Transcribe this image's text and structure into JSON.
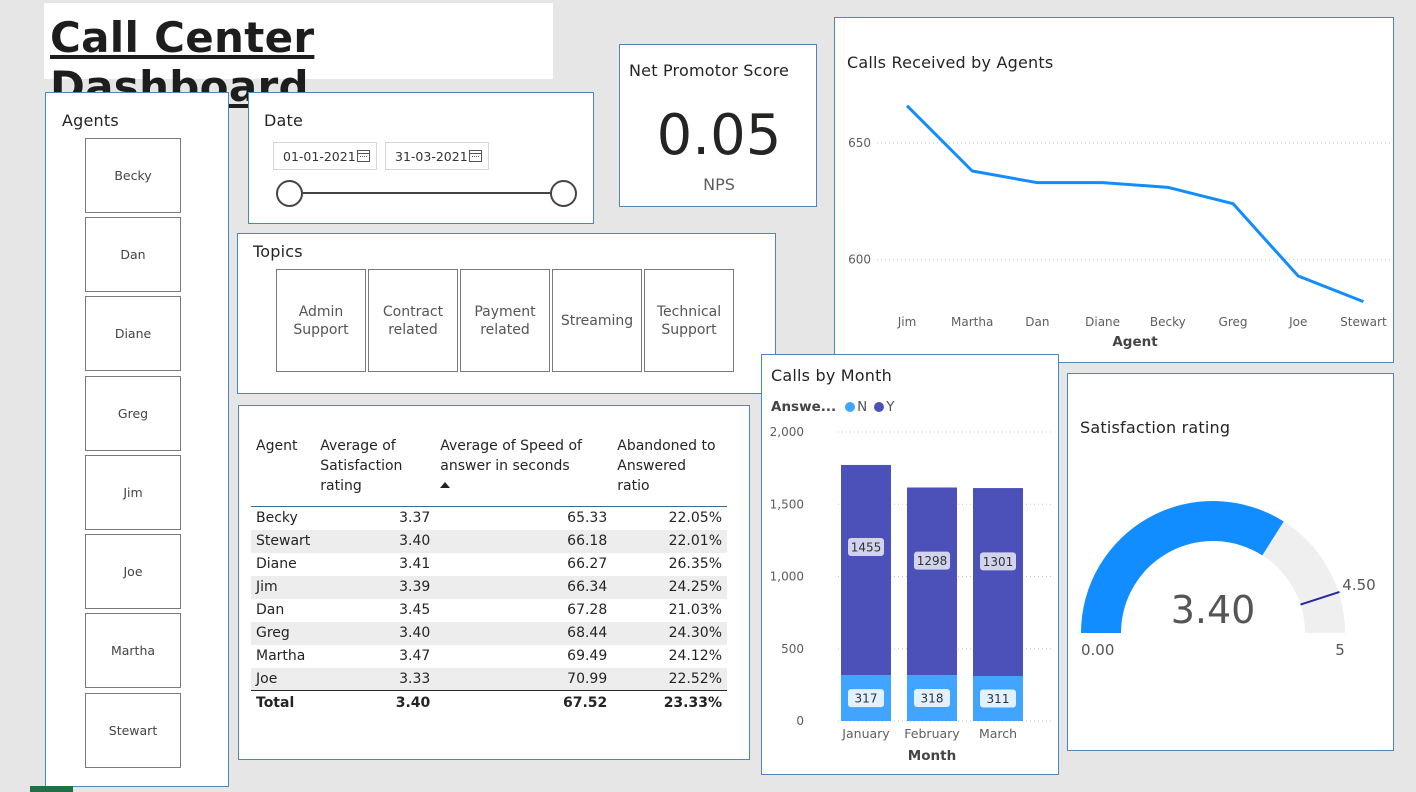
{
  "title": "Call Center Dashboard",
  "agents_slicer": {
    "title": "Agents",
    "items": [
      "Becky",
      "Dan",
      "Diane",
      "Greg",
      "Jim",
      "Joe",
      "Martha",
      "Stewart"
    ]
  },
  "date_slicer": {
    "title": "Date",
    "start": "01-01-2021",
    "end": "31-03-2021"
  },
  "nps": {
    "title": "Net Promotor Score",
    "value": "0.05",
    "label": "NPS"
  },
  "topics": {
    "title": "Topics",
    "items": [
      "Admin Support",
      "Contract related",
      "Payment related",
      "Streaming",
      "Technical Support"
    ]
  },
  "table": {
    "headers": [
      "Agent",
      "Average of Satisfaction rating",
      "Average of Speed of answer in seconds",
      "Abandoned to Answered ratio"
    ],
    "rows": [
      [
        "Becky",
        "3.37",
        "65.33",
        "22.05%"
      ],
      [
        "Stewart",
        "3.40",
        "66.18",
        "22.01%"
      ],
      [
        "Diane",
        "3.41",
        "66.27",
        "26.35%"
      ],
      [
        "Jim",
        "3.39",
        "66.34",
        "24.25%"
      ],
      [
        "Dan",
        "3.45",
        "67.28",
        "21.03%"
      ],
      [
        "Greg",
        "3.40",
        "68.44",
        "24.30%"
      ],
      [
        "Martha",
        "3.47",
        "69.49",
        "24.12%"
      ],
      [
        "Joe",
        "3.33",
        "70.99",
        "22.52%"
      ]
    ],
    "total": [
      "Total",
      "3.40",
      "67.52",
      "23.33%"
    ]
  },
  "line_chart": {
    "title": "Calls Received by Agents",
    "xlabel": "Agent",
    "y_ticks": [
      "650",
      "600"
    ],
    "colors": {
      "line": "#118dff",
      "grid": "#c8c8c8"
    }
  },
  "bar_chart": {
    "title": "Calls by Month",
    "legend_title": "Answe...",
    "legend": [
      "N",
      "Y"
    ],
    "xlabel": "Month",
    "y_ticks": [
      "2,000",
      "1,500",
      "1,000",
      "500",
      "0"
    ],
    "colors": {
      "N": "#41a4ff",
      "Y": "#4b51b8"
    }
  },
  "gauge": {
    "title": "Satisfaction rating",
    "value": "3.40",
    "min": "0.00",
    "max": "5",
    "target": "4.50",
    "colors": {
      "fill": "#118dff",
      "track": "#efefef",
      "target": "#2828a0"
    }
  },
  "chart_data": [
    {
      "type": "line",
      "title": "Calls Received by Agents",
      "xlabel": "Agent",
      "ylabel": "",
      "categories": [
        "Jim",
        "Martha",
        "Dan",
        "Diane",
        "Becky",
        "Greg",
        "Joe",
        "Stewart"
      ],
      "values": [
        666,
        638,
        633,
        633,
        631,
        624,
        593,
        582
      ],
      "ylim": [
        575,
        680
      ],
      "grid": true
    },
    {
      "type": "bar",
      "title": "Calls by Month",
      "xlabel": "Month",
      "ylabel": "",
      "categories": [
        "January",
        "February",
        "March"
      ],
      "series": [
        {
          "name": "N",
          "values": [
            317,
            318,
            311
          ]
        },
        {
          "name": "Y",
          "values": [
            1455,
            1298,
            1301
          ]
        }
      ],
      "stacked": true,
      "ylim": [
        0,
        2000
      ],
      "legend": "top-left"
    },
    {
      "type": "gauge",
      "title": "Satisfaction rating",
      "value": 3.4,
      "min": 0,
      "max": 5,
      "target": 4.5
    }
  ]
}
